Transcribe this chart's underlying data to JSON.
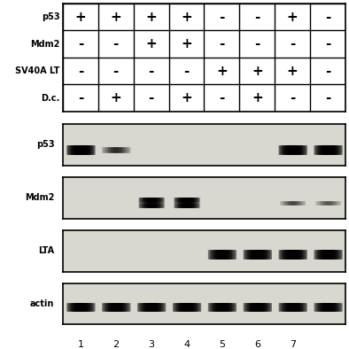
{
  "table_rows": [
    "p53",
    "Mdm2",
    "SV40A LT",
    "D.c."
  ],
  "table_cols": 8,
  "table_data": [
    [
      "+",
      "+",
      "+",
      "+",
      "-",
      "-",
      "+",
      "-"
    ],
    [
      "-",
      "-",
      "+",
      "+",
      "-",
      "-",
      "-",
      "-"
    ],
    [
      "-",
      "-",
      "-",
      "-",
      "+",
      "+",
      "+",
      "-"
    ],
    [
      "-",
      "+",
      "-",
      "+",
      "-",
      "+",
      "-",
      "-"
    ]
  ],
  "blot_labels": [
    "p53",
    "Mdm2",
    "LTA",
    "actin"
  ],
  "lane_labels": [
    "1",
    "2",
    "3",
    "4",
    "5",
    "6",
    "7",
    ""
  ],
  "bg_color": "#d8d8d0",
  "band_color": "#1a1a1a",
  "border_color": "#000000",
  "table_bg": "#ffffff",
  "table_border": "#000000",
  "n_lanes": 8
}
